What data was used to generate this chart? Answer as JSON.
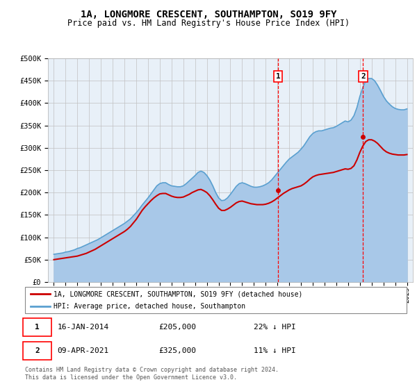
{
  "title": "1A, LONGMORE CRESCENT, SOUTHAMPTON, SO19 9FY",
  "subtitle": "Price paid vs. HM Land Registry's House Price Index (HPI)",
  "ylabel_ticks": [
    "£0",
    "£50K",
    "£100K",
    "£150K",
    "£200K",
    "£250K",
    "£300K",
    "£350K",
    "£400K",
    "£450K",
    "£500K"
  ],
  "ytick_values": [
    0,
    50000,
    100000,
    150000,
    200000,
    250000,
    300000,
    350000,
    400000,
    450000,
    500000
  ],
  "ylim": [
    0,
    500000
  ],
  "sale1_date": "16-JAN-2014",
  "sale1_price": 205000,
  "sale1_label": "22% ↓ HPI",
  "sale1_x": 2014.04,
  "sale2_date": "09-APR-2021",
  "sale2_price": 325000,
  "sale2_label": "11% ↓ HPI",
  "sale2_x": 2021.27,
  "hpi_color": "#a8c8e8",
  "hpi_line_color": "#5aa0d0",
  "price_color": "#cc0000",
  "legend1_label": "1A, LONGMORE CRESCENT, SOUTHAMPTON, SO19 9FY (detached house)",
  "legend2_label": "HPI: Average price, detached house, Southampton",
  "footer": "Contains HM Land Registry data © Crown copyright and database right 2024.\nThis data is licensed under the Open Government Licence v3.0.",
  "plot_bg": "#e8f0f8",
  "hpi_years": [
    1995.0,
    1995.25,
    1995.5,
    1995.75,
    1996.0,
    1996.25,
    1996.5,
    1996.75,
    1997.0,
    1997.25,
    1997.5,
    1997.75,
    1998.0,
    1998.25,
    1998.5,
    1998.75,
    1999.0,
    1999.25,
    1999.5,
    1999.75,
    2000.0,
    2000.25,
    2000.5,
    2000.75,
    2001.0,
    2001.25,
    2001.5,
    2001.75,
    2002.0,
    2002.25,
    2002.5,
    2002.75,
    2003.0,
    2003.25,
    2003.5,
    2003.75,
    2004.0,
    2004.25,
    2004.5,
    2004.75,
    2005.0,
    2005.25,
    2005.5,
    2005.75,
    2006.0,
    2006.25,
    2006.5,
    2006.75,
    2007.0,
    2007.25,
    2007.5,
    2007.75,
    2008.0,
    2008.25,
    2008.5,
    2008.75,
    2009.0,
    2009.25,
    2009.5,
    2009.75,
    2010.0,
    2010.25,
    2010.5,
    2010.75,
    2011.0,
    2011.25,
    2011.5,
    2011.75,
    2012.0,
    2012.25,
    2012.5,
    2012.75,
    2013.0,
    2013.25,
    2013.5,
    2013.75,
    2014.0,
    2014.25,
    2014.5,
    2014.75,
    2015.0,
    2015.25,
    2015.5,
    2015.75,
    2016.0,
    2016.25,
    2016.5,
    2016.75,
    2017.0,
    2017.25,
    2017.5,
    2017.75,
    2018.0,
    2018.25,
    2018.5,
    2018.75,
    2019.0,
    2019.25,
    2019.5,
    2019.75,
    2020.0,
    2020.25,
    2020.5,
    2020.75,
    2021.0,
    2021.25,
    2021.5,
    2021.75,
    2022.0,
    2022.25,
    2022.5,
    2022.75,
    2023.0,
    2023.25,
    2023.5,
    2023.75,
    2024.0,
    2024.25,
    2024.5,
    2024.75,
    2025.0
  ],
  "hpi_values": [
    62000,
    63000,
    64000,
    65000,
    67000,
    68000,
    70000,
    72000,
    75000,
    77000,
    80000,
    83000,
    86000,
    89000,
    92000,
    95000,
    99000,
    103000,
    107000,
    111000,
    115000,
    119000,
    123000,
    127000,
    131000,
    136000,
    141000,
    148000,
    155000,
    163000,
    172000,
    180000,
    188000,
    197000,
    206000,
    215000,
    220000,
    222000,
    222000,
    218000,
    215000,
    214000,
    213000,
    213000,
    215000,
    220000,
    226000,
    232000,
    238000,
    245000,
    248000,
    245000,
    238000,
    228000,
    215000,
    200000,
    188000,
    182000,
    183000,
    188000,
    196000,
    205000,
    214000,
    220000,
    222000,
    220000,
    217000,
    214000,
    212000,
    212000,
    213000,
    215000,
    218000,
    222000,
    228000,
    236000,
    244000,
    252000,
    260000,
    268000,
    275000,
    280000,
    285000,
    290000,
    297000,
    305000,
    315000,
    325000,
    332000,
    336000,
    338000,
    338000,
    340000,
    342000,
    344000,
    345000,
    348000,
    352000,
    356000,
    360000,
    358000,
    362000,
    372000,
    390000,
    415000,
    435000,
    450000,
    455000,
    455000,
    450000,
    440000,
    428000,
    415000,
    405000,
    398000,
    392000,
    388000,
    386000,
    385000,
    385000,
    387000
  ],
  "price_years": [
    1995.0,
    1995.25,
    1995.5,
    1995.75,
    1996.0,
    1996.25,
    1996.5,
    1996.75,
    1997.0,
    1997.25,
    1997.5,
    1997.75,
    1998.0,
    1998.25,
    1998.5,
    1998.75,
    1999.0,
    1999.25,
    1999.5,
    1999.75,
    2000.0,
    2000.25,
    2000.5,
    2000.75,
    2001.0,
    2001.25,
    2001.5,
    2001.75,
    2002.0,
    2002.25,
    2002.5,
    2002.75,
    2003.0,
    2003.25,
    2003.5,
    2003.75,
    2004.0,
    2004.25,
    2004.5,
    2004.75,
    2005.0,
    2005.25,
    2005.5,
    2005.75,
    2006.0,
    2006.25,
    2006.5,
    2006.75,
    2007.0,
    2007.25,
    2007.5,
    2007.75,
    2008.0,
    2008.25,
    2008.5,
    2008.75,
    2009.0,
    2009.25,
    2009.5,
    2009.75,
    2010.0,
    2010.25,
    2010.5,
    2010.75,
    2011.0,
    2011.25,
    2011.5,
    2011.75,
    2012.0,
    2012.25,
    2012.5,
    2012.75,
    2013.0,
    2013.25,
    2013.5,
    2013.75,
    2014.0,
    2014.25,
    2014.5,
    2014.75,
    2015.0,
    2015.25,
    2015.5,
    2015.75,
    2016.0,
    2016.25,
    2016.5,
    2016.75,
    2017.0,
    2017.25,
    2017.5,
    2017.75,
    2018.0,
    2018.25,
    2018.5,
    2018.75,
    2019.0,
    2019.25,
    2019.5,
    2019.75,
    2020.0,
    2020.25,
    2020.5,
    2020.75,
    2021.0,
    2021.25,
    2021.5,
    2021.75,
    2022.0,
    2022.25,
    2022.5,
    2022.75,
    2023.0,
    2023.25,
    2023.5,
    2023.75,
    2024.0,
    2024.25,
    2024.5,
    2024.75,
    2025.0
  ],
  "price_values": [
    50000,
    51000,
    52000,
    53000,
    54000,
    55000,
    56000,
    57000,
    58000,
    60000,
    62000,
    64000,
    67000,
    70000,
    73000,
    77000,
    81000,
    85000,
    89000,
    93000,
    97000,
    101000,
    105000,
    109000,
    113000,
    118000,
    124000,
    132000,
    140000,
    150000,
    160000,
    168000,
    175000,
    182000,
    188000,
    193000,
    197000,
    198000,
    198000,
    195000,
    192000,
    190000,
    189000,
    189000,
    190000,
    193000,
    196000,
    200000,
    203000,
    206000,
    207000,
    204000,
    200000,
    193000,
    184000,
    174000,
    165000,
    160000,
    160000,
    163000,
    167000,
    172000,
    177000,
    180000,
    181000,
    179000,
    177000,
    175000,
    174000,
    173000,
    173000,
    173000,
    174000,
    176000,
    179000,
    183000,
    188000,
    193000,
    198000,
    202000,
    206000,
    209000,
    211000,
    213000,
    215000,
    219000,
    224000,
    230000,
    235000,
    238000,
    240000,
    241000,
    242000,
    243000,
    244000,
    245000,
    247000,
    249000,
    251000,
    253000,
    252000,
    254000,
    260000,
    273000,
    290000,
    304000,
    314000,
    318000,
    318000,
    315000,
    310000,
    303000,
    296000,
    291000,
    288000,
    286000,
    285000,
    284000,
    284000,
    284000,
    285000
  ],
  "xlim": [
    1994.5,
    2025.5
  ],
  "xticks": [
    1995,
    1996,
    1997,
    1998,
    1999,
    2000,
    2001,
    2002,
    2003,
    2004,
    2005,
    2006,
    2007,
    2008,
    2009,
    2010,
    2011,
    2012,
    2013,
    2014,
    2015,
    2016,
    2017,
    2018,
    2019,
    2020,
    2021,
    2022,
    2023,
    2024,
    2025
  ]
}
